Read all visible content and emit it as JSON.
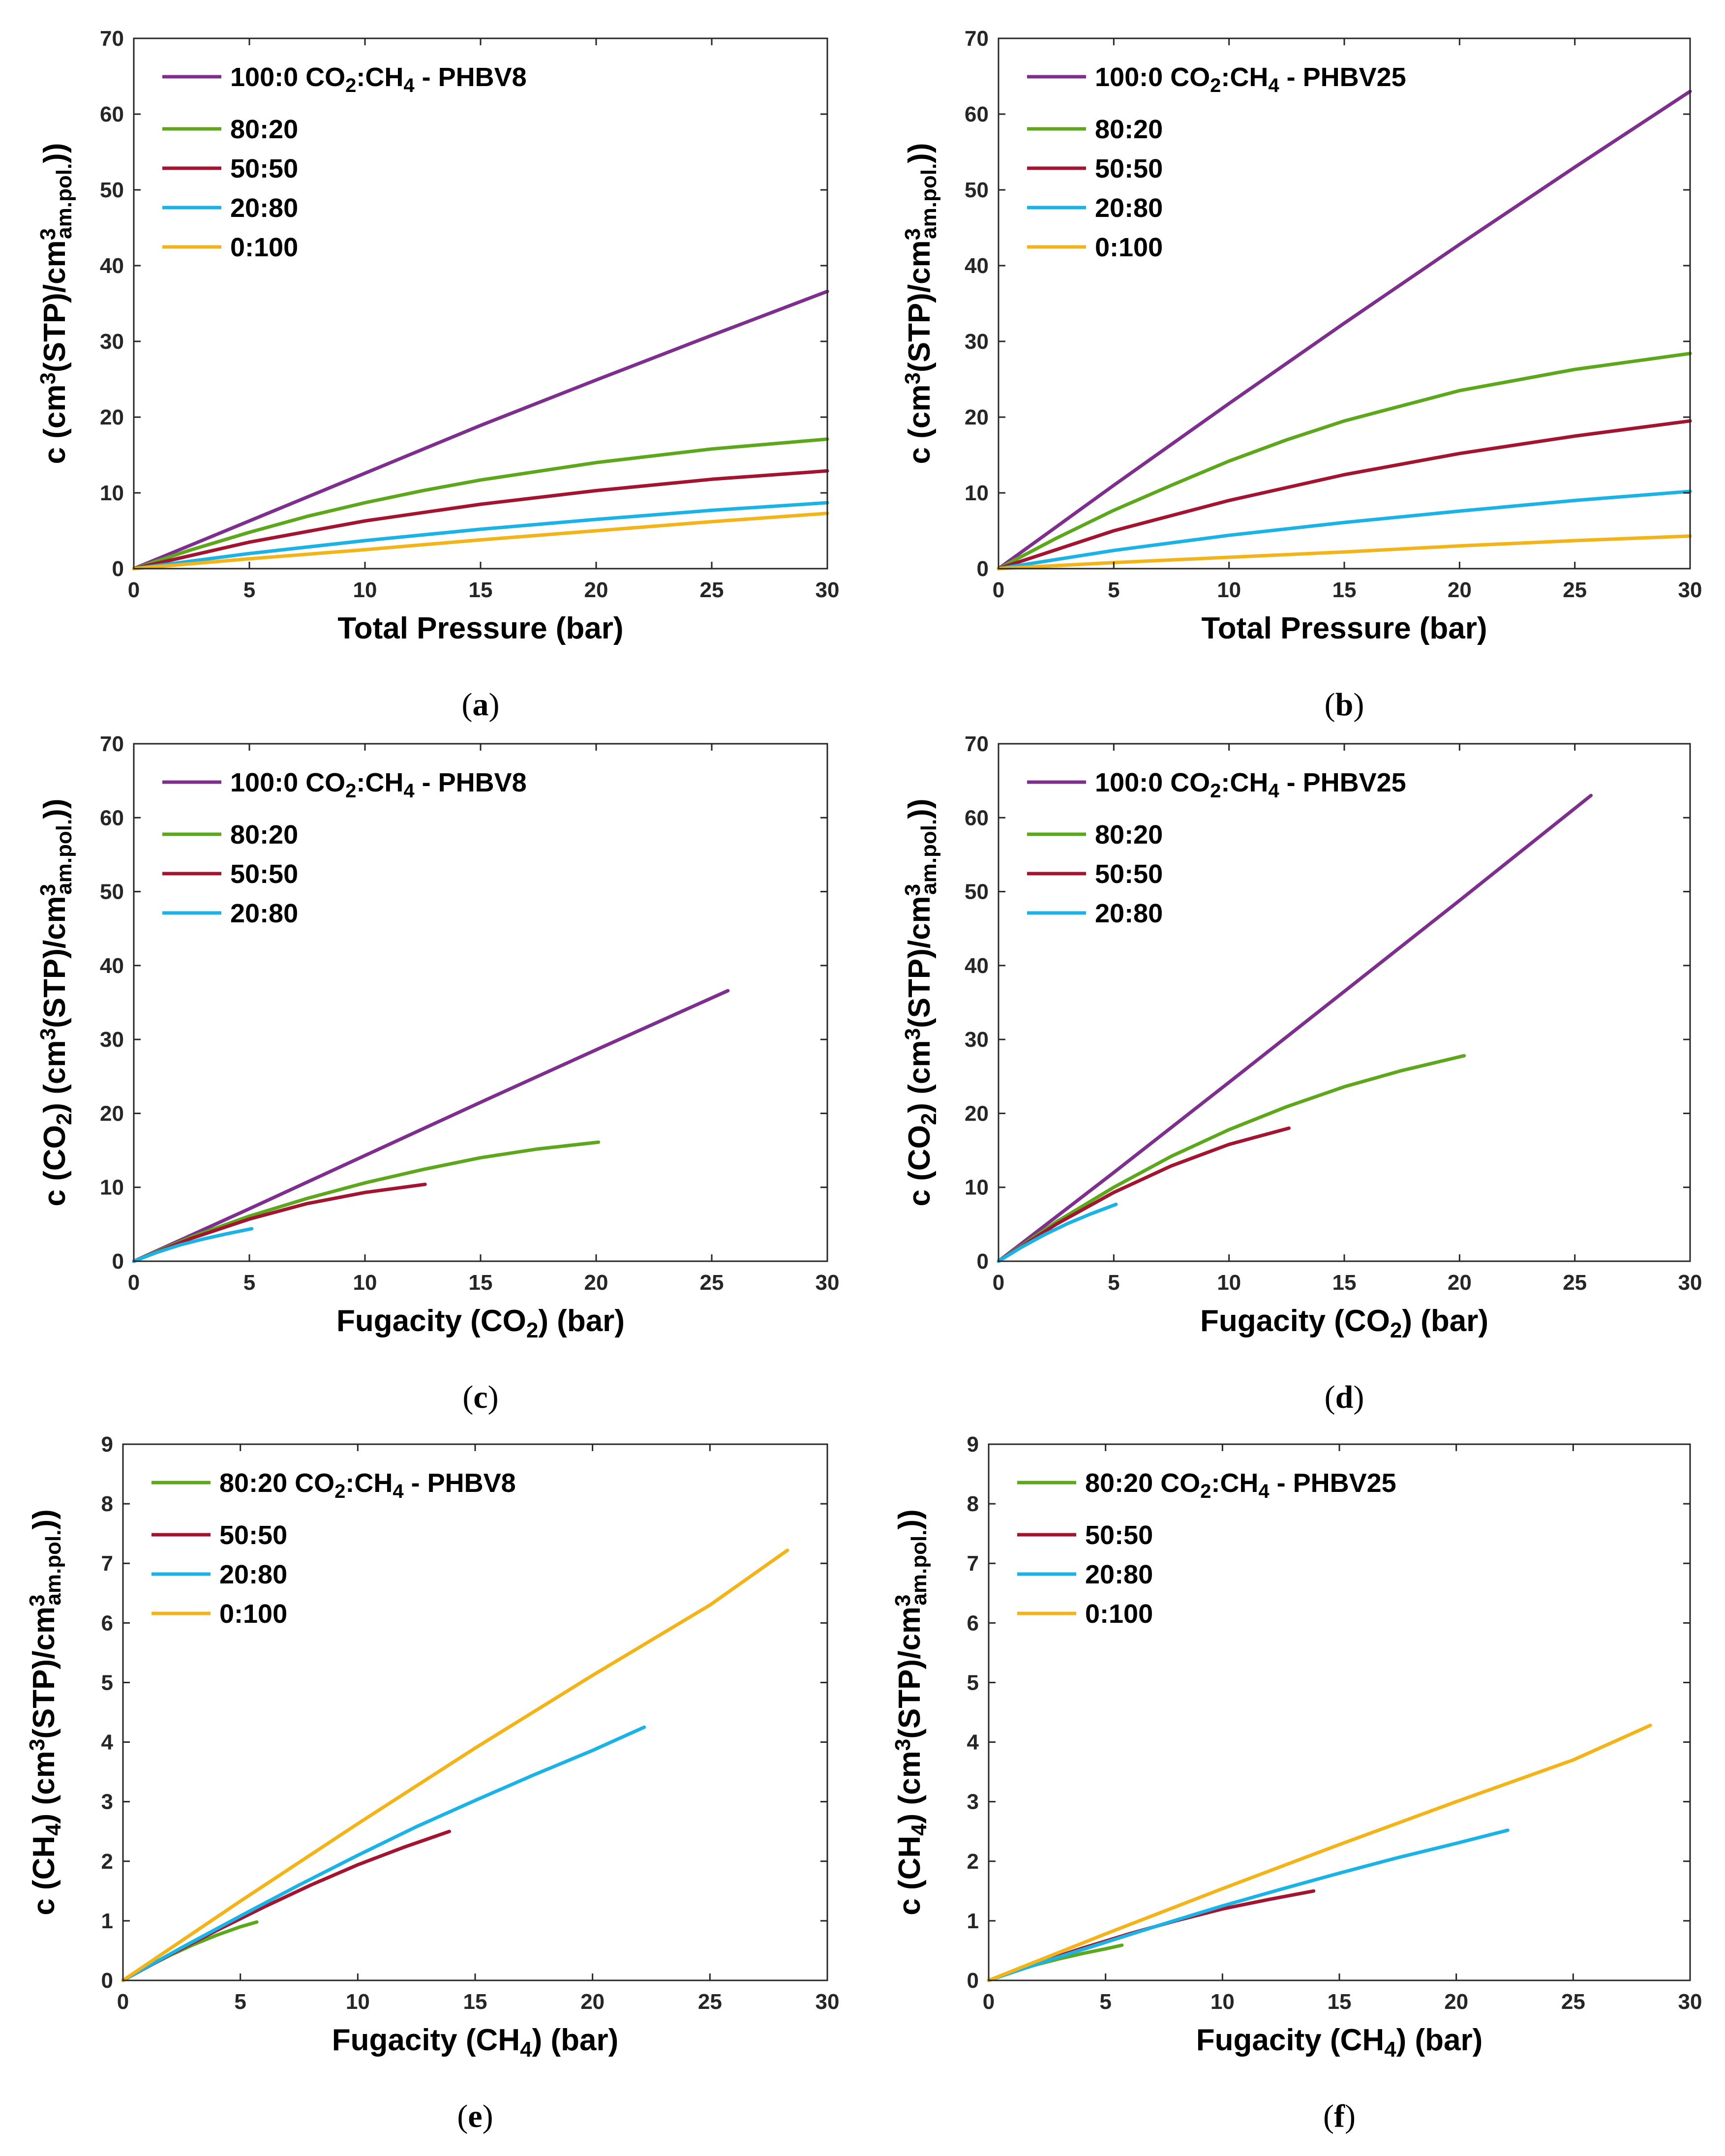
{
  "colors": {
    "purple": "#7E2F8E",
    "green": "#5DA71D",
    "red": "#A2142F",
    "cyan": "#1BB2E6",
    "yellow": "#F2B418"
  },
  "chart_data": [
    {
      "id": "a",
      "type": "line",
      "caption": "a",
      "xlabel": "Total Pressure (bar)",
      "ylabel": "c (cm3(STP)/cm3am.pol.)",
      "xlim": [
        0,
        30
      ],
      "ylim": [
        0,
        70
      ],
      "xticks": [
        0,
        5,
        10,
        15,
        20,
        25,
        30
      ],
      "yticks": [
        0,
        10,
        20,
        30,
        40,
        50,
        60,
        70
      ],
      "grid": false,
      "legend_position": "top-left",
      "series": [
        {
          "name": "100:0 CO2:CH4 - PHBV8",
          "label_main": "100:0 CO",
          "label_sub1": "2",
          "label_mid": ":CH",
          "label_sub2": "4",
          "label_tail": " - PHBV8",
          "color": "purple",
          "x": [
            0,
            5,
            10,
            15,
            20,
            25,
            30
          ],
          "y": [
            0,
            6.3,
            12.6,
            18.9,
            24.9,
            30.8,
            36.6
          ]
        },
        {
          "name": "80:20",
          "color": "green",
          "x": [
            0,
            2.5,
            5,
            7.5,
            10,
            12.5,
            15,
            20,
            25,
            30
          ],
          "y": [
            0,
            2.5,
            4.8,
            6.9,
            8.7,
            10.3,
            11.7,
            14.0,
            15.8,
            17.1
          ]
        },
        {
          "name": "50:50",
          "color": "red",
          "x": [
            0,
            5,
            10,
            15,
            20,
            25,
            30
          ],
          "y": [
            0,
            3.5,
            6.3,
            8.5,
            10.3,
            11.8,
            12.9
          ]
        },
        {
          "name": "20:80",
          "color": "cyan",
          "x": [
            0,
            5,
            10,
            15,
            20,
            25,
            30
          ],
          "y": [
            0,
            2.0,
            3.7,
            5.2,
            6.5,
            7.7,
            8.7
          ]
        },
        {
          "name": "0:100",
          "color": "yellow",
          "x": [
            0,
            5,
            10,
            15,
            20,
            25,
            30
          ],
          "y": [
            0,
            1.3,
            2.5,
            3.8,
            5.0,
            6.2,
            7.3
          ]
        }
      ]
    },
    {
      "id": "b",
      "type": "line",
      "caption": "b",
      "xlabel": "Total Pressure (bar)",
      "ylabel": "c (cm3(STP)/cm3am.pol.)",
      "xlim": [
        0,
        30
      ],
      "ylim": [
        0,
        70
      ],
      "xticks": [
        0,
        5,
        10,
        15,
        20,
        25,
        30
      ],
      "yticks": [
        0,
        10,
        20,
        30,
        40,
        50,
        60,
        70
      ],
      "grid": false,
      "legend_position": "top-left",
      "series": [
        {
          "name": "100:0 CO2:CH4 - PHBV25",
          "label_main": "100:0 CO",
          "label_sub1": "2",
          "label_mid": ":CH",
          "label_sub2": "4",
          "label_tail": " - PHBV25",
          "color": "purple",
          "x": [
            0,
            5,
            10,
            15,
            20,
            25,
            30
          ],
          "y": [
            0,
            11.0,
            21.8,
            32.4,
            42.8,
            53.0,
            63.0
          ]
        },
        {
          "name": "80:20",
          "color": "green",
          "x": [
            0,
            2.5,
            5,
            7.5,
            10,
            12.5,
            15,
            20,
            25,
            30
          ],
          "y": [
            0,
            4.0,
            7.7,
            11.0,
            14.2,
            17.0,
            19.5,
            23.5,
            26.3,
            28.4
          ]
        },
        {
          "name": "50:50",
          "color": "red",
          "x": [
            0,
            5,
            10,
            15,
            20,
            25,
            30
          ],
          "y": [
            0,
            5.0,
            9.0,
            12.4,
            15.2,
            17.5,
            19.5
          ]
        },
        {
          "name": "20:80",
          "color": "cyan",
          "x": [
            0,
            5,
            10,
            15,
            20,
            25,
            30
          ],
          "y": [
            0,
            2.4,
            4.4,
            6.1,
            7.6,
            9.0,
            10.2
          ]
        },
        {
          "name": "0:100",
          "color": "yellow",
          "x": [
            0,
            5,
            10,
            15,
            20,
            25,
            30
          ],
          "y": [
            0,
            0.8,
            1.5,
            2.2,
            3.0,
            3.7,
            4.3
          ]
        }
      ]
    },
    {
      "id": "c",
      "type": "line",
      "caption": "c",
      "xlabel": "Fugacity (CO2) (bar)",
      "ylabel": "c (CO2) (cm3(STP)/cm3am.pol.)",
      "xlim": [
        0,
        30
      ],
      "ylim": [
        0,
        70
      ],
      "xticks": [
        0,
        5,
        10,
        15,
        20,
        25,
        30
      ],
      "yticks": [
        0,
        10,
        20,
        30,
        40,
        50,
        60,
        70
      ],
      "grid": false,
      "legend_position": "top-left",
      "series": [
        {
          "name": "100:0 CO2:CH4 - PHBV8",
          "label_main": "100:0 CO",
          "label_sub1": "2",
          "label_mid": ":CH",
          "label_sub2": "4",
          "label_tail": " - PHBV8",
          "color": "purple",
          "x": [
            0,
            5,
            10,
            15,
            20,
            25.7
          ],
          "y": [
            0,
            7.1,
            14.3,
            21.5,
            28.6,
            36.6
          ]
        },
        {
          "name": "80:20",
          "color": "green",
          "x": [
            0,
            2.5,
            5,
            7.5,
            10,
            12.5,
            15,
            17.5,
            20.1
          ],
          "y": [
            0,
            3.3,
            6.1,
            8.5,
            10.6,
            12.4,
            14.0,
            15.2,
            16.1
          ]
        },
        {
          "name": "50:50",
          "color": "red",
          "x": [
            0,
            2.5,
            5,
            7.5,
            10,
            12.6
          ],
          "y": [
            0,
            3.1,
            5.7,
            7.8,
            9.3,
            10.4
          ]
        },
        {
          "name": "20:80",
          "color": "cyan",
          "x": [
            0,
            1,
            2,
            3,
            4,
            5.1
          ],
          "y": [
            0,
            1.2,
            2.2,
            3.0,
            3.7,
            4.4
          ]
        }
      ]
    },
    {
      "id": "d",
      "type": "line",
      "caption": "d",
      "xlabel": "Fugacity (CO2) (bar)",
      "ylabel": "c (CO2) (cm3(STP)/cm3am.pol.)",
      "xlim": [
        0,
        30
      ],
      "ylim": [
        0,
        70
      ],
      "xticks": [
        0,
        5,
        10,
        15,
        20,
        25,
        30
      ],
      "yticks": [
        0,
        10,
        20,
        30,
        40,
        50,
        60,
        70
      ],
      "grid": false,
      "legend_position": "top-left",
      "series": [
        {
          "name": "100:0 CO2:CH4 - PHBV25",
          "label_main": "100:0 CO",
          "label_sub1": "2",
          "label_mid": ":CH",
          "label_sub2": "4",
          "label_tail": " - PHBV25",
          "color": "purple",
          "x": [
            0,
            5,
            10,
            15,
            20,
            25.7
          ],
          "y": [
            0,
            12.0,
            24.2,
            36.5,
            48.8,
            63.0
          ]
        },
        {
          "name": "80:20",
          "color": "green",
          "x": [
            0,
            2.5,
            5,
            7.5,
            10,
            12.5,
            15,
            17.5,
            20.2
          ],
          "y": [
            0,
            5.3,
            10.0,
            14.2,
            17.8,
            20.9,
            23.6,
            25.8,
            27.8
          ]
        },
        {
          "name": "50:50",
          "color": "red",
          "x": [
            0,
            2.5,
            5,
            7.5,
            10,
            12.6
          ],
          "y": [
            0,
            5.0,
            9.3,
            12.9,
            15.8,
            18.0
          ]
        },
        {
          "name": "20:80",
          "color": "cyan",
          "x": [
            0,
            1,
            2,
            3,
            4,
            5.1
          ],
          "y": [
            0,
            1.9,
            3.6,
            5.1,
            6.4,
            7.7
          ]
        }
      ]
    },
    {
      "id": "e",
      "type": "line",
      "caption": "e",
      "xlabel": "Fugacity (CH4) (bar)",
      "ylabel": "c (CH4) (cm3(STP)/cm3am.pol.)",
      "xlim": [
        0,
        30
      ],
      "ylim": [
        0,
        9
      ],
      "xticks": [
        0,
        5,
        10,
        15,
        20,
        25,
        30
      ],
      "yticks": [
        0,
        1,
        2,
        3,
        4,
        5,
        6,
        7,
        8,
        9
      ],
      "grid": false,
      "legend_position": "top-left",
      "series": [
        {
          "name": "80:20 CO2:CH4 - PHBV8",
          "label_main": "80:20 CO",
          "label_sub1": "2",
          "label_mid": ":CH",
          "label_sub2": "4",
          "label_tail": " - PHBV8",
          "color": "green",
          "x": [
            0,
            1,
            2,
            3,
            4,
            5,
            5.7
          ],
          "y": [
            0,
            0.22,
            0.42,
            0.6,
            0.76,
            0.9,
            0.98
          ]
        },
        {
          "name": "50:50",
          "color": "red",
          "x": [
            0,
            2,
            4,
            6,
            8,
            10,
            12,
            13.9
          ],
          "y": [
            0,
            0.43,
            0.84,
            1.23,
            1.6,
            1.94,
            2.24,
            2.5
          ]
        },
        {
          "name": "20:80",
          "color": "cyan",
          "x": [
            0,
            2.5,
            5,
            7.5,
            10,
            12.5,
            15,
            17.5,
            20,
            22.2
          ],
          "y": [
            0,
            0.55,
            1.08,
            1.6,
            2.1,
            2.58,
            3.02,
            3.45,
            3.86,
            4.25
          ]
        },
        {
          "name": "0:100",
          "color": "yellow",
          "x": [
            0,
            5,
            10,
            15,
            20,
            25,
            28.3
          ],
          "y": [
            0,
            1.33,
            2.63,
            3.9,
            5.12,
            6.3,
            7.22
          ]
        }
      ]
    },
    {
      "id": "f",
      "type": "line",
      "caption": "f",
      "xlabel": "Fugacity (CH4) (bar)",
      "ylabel": "c (CH4) (cm3(STP)/cm3am.pol.)",
      "xlim": [
        0,
        30
      ],
      "ylim": [
        0,
        9
      ],
      "xticks": [
        0,
        5,
        10,
        15,
        20,
        25,
        30
      ],
      "yticks": [
        0,
        1,
        2,
        3,
        4,
        5,
        6,
        7,
        8,
        9
      ],
      "grid": false,
      "legend_position": "top-left",
      "series": [
        {
          "name": "80:20 CO2:CH4 - PHBV25",
          "label_main": "80:20 CO",
          "label_sub1": "2",
          "label_mid": ":CH",
          "label_sub2": "4",
          "label_tail": " - PHBV25",
          "color": "green",
          "x": [
            0,
            1,
            2,
            3,
            4,
            5,
            5.7
          ],
          "y": [
            0,
            0.14,
            0.26,
            0.36,
            0.45,
            0.53,
            0.59
          ]
        },
        {
          "name": "50:50",
          "color": "red",
          "x": [
            0,
            2,
            4,
            6,
            8,
            10,
            12,
            13.9
          ],
          "y": [
            0,
            0.28,
            0.54,
            0.78,
            1.0,
            1.2,
            1.36,
            1.5
          ]
        },
        {
          "name": "20:80",
          "color": "cyan",
          "x": [
            0,
            2.5,
            5,
            7.5,
            10,
            12.5,
            15,
            17.5,
            20,
            22.2
          ],
          "y": [
            0,
            0.33,
            0.64,
            0.95,
            1.25,
            1.53,
            1.8,
            2.06,
            2.3,
            2.52
          ]
        },
        {
          "name": "0:100",
          "color": "yellow",
          "x": [
            0,
            5,
            10,
            15,
            20,
            25,
            28.3
          ],
          "y": [
            0,
            0.78,
            1.54,
            2.28,
            3.0,
            3.7,
            4.28
          ]
        }
      ]
    }
  ]
}
